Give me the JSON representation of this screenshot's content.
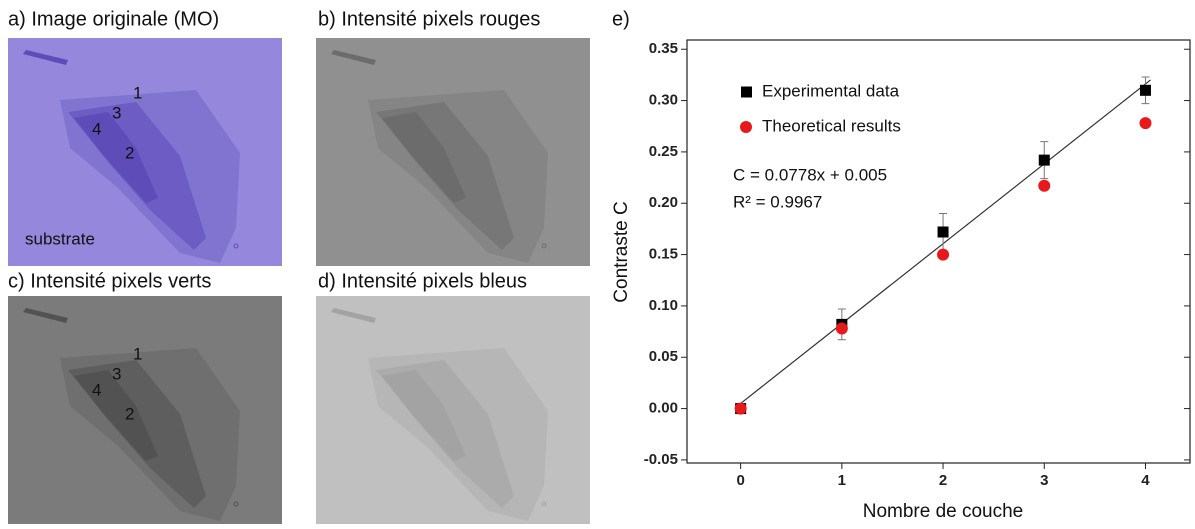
{
  "panels": [
    {
      "label": "a) Image originale (MO)",
      "annotations": [
        "1",
        "3",
        "4",
        "2",
        "substrate"
      ]
    },
    {
      "label": "b) Intensité pixels rouges"
    },
    {
      "label": "c) Intensité pixels verts",
      "annotations": [
        "1",
        "3",
        "4",
        "2"
      ]
    },
    {
      "label": "d) Intensité pixels bleus"
    }
  ],
  "chart_data": {
    "type": "scatter",
    "panel_label": "e)",
    "x_label": "Nombre de couche",
    "y_label": "Contraste C",
    "x": [
      0,
      1,
      2,
      3,
      4
    ],
    "series": [
      {
        "name": "Experimental data",
        "color": "#000000",
        "marker": "square",
        "values": [
          0,
          0.082,
          0.172,
          0.242,
          0.31
        ],
        "errors": [
          0,
          0.015,
          0.018,
          0.018,
          0.013
        ]
      },
      {
        "name": "Theoretical results",
        "color": "#e8191b",
        "marker": "circle",
        "values": [
          0,
          0.078,
          0.15,
          0.217,
          0.278
        ]
      }
    ],
    "fit": {
      "slope": 0.0778,
      "intercept": 0.005,
      "label": "C = 0.0778x + 0.005",
      "r2_label": "R² = 0.9967"
    },
    "xlim": [
      -0.53,
      4.44
    ],
    "ylim": [
      -0.053,
      0.359
    ],
    "xticks": [
      0,
      1,
      2,
      3,
      4
    ],
    "yticks": [
      -0.05,
      {
        "value": 0,
        "label": "0.00"
      },
      0.05,
      {
        "value": 0.1,
        "label": "0.10"
      },
      0.15,
      {
        "value": 0.2,
        "label": "0.20"
      },
      0.25,
      {
        "value": 0.3,
        "label": "0.30"
      },
      0.35
    ]
  }
}
